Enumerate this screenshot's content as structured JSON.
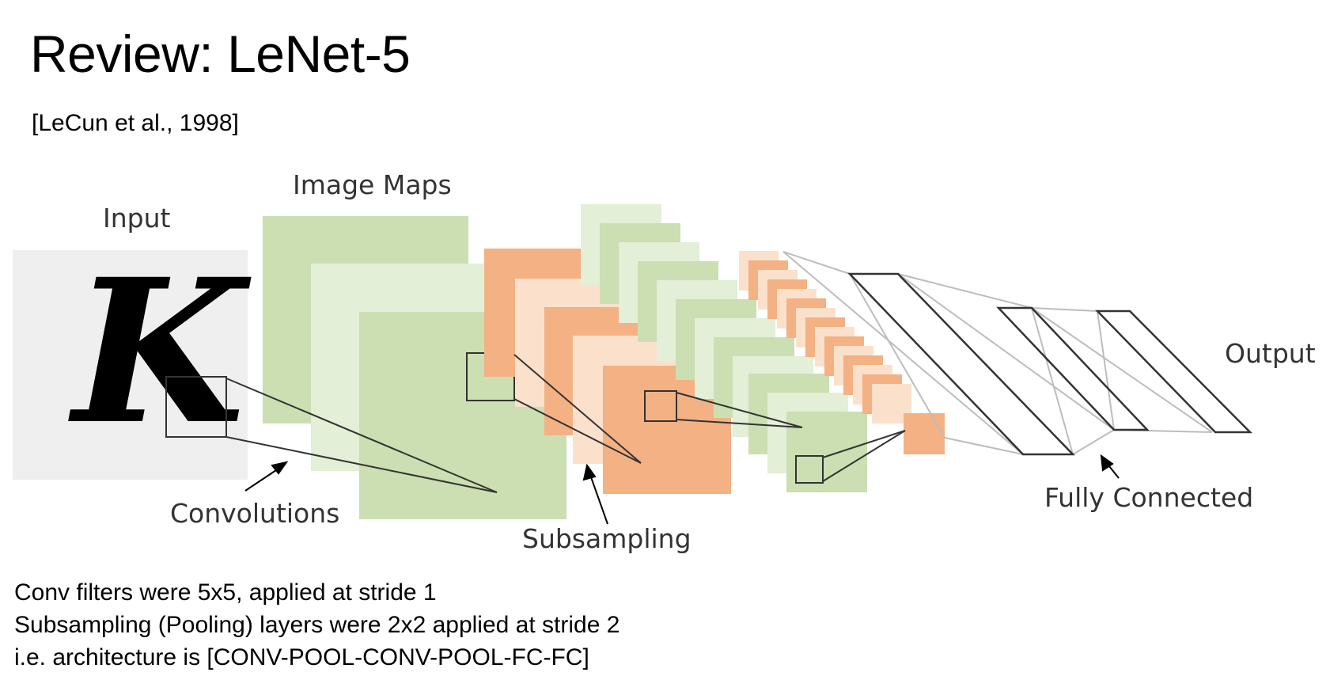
{
  "slide": {
    "title": "Review: LeNet-5",
    "citation": "[LeCun et al., 1998]"
  },
  "diagram": {
    "labels": {
      "input": "Input",
      "image_maps": "Image Maps",
      "convolutions": "Convolutions",
      "subsampling": "Subsampling",
      "fully_connected": "Fully Connected",
      "output": "Output"
    },
    "input_glyph": "K",
    "colors": {
      "input_bg": "#efefef",
      "conv_dark": "#cbdfb2",
      "conv_light": "#e3efd6",
      "pool_dark": "#f3b184",
      "pool_light": "#fbe1cc",
      "fc_stroke": "#333333",
      "connector": "#bdbdbd"
    }
  },
  "notes": [
    "Conv filters were 5x5, applied at stride 1",
    "Subsampling (Pooling) layers were 2x2 applied at stride 2",
    "i.e. architecture is [CONV-POOL-CONV-POOL-FC-FC]"
  ]
}
